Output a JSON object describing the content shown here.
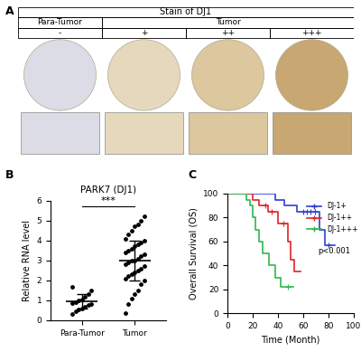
{
  "panel_a": {
    "label": "A",
    "header": "Stain of DJ1",
    "groups": [
      {
        "name": "Para-Tumor",
        "grades": [
          "-"
        ]
      },
      {
        "name": "Tumor",
        "grades": [
          "+",
          "++",
          "+++"
        ]
      }
    ]
  },
  "chart_data": [
    {
      "type": "scatter",
      "label": "B",
      "title": "PARK7 (DJ1)",
      "y_label": "Relative RNA level",
      "categories": [
        "Para-Tumor",
        "Tumor"
      ],
      "values": [
        [
          0.3,
          0.45,
          0.55,
          0.6,
          0.7,
          0.75,
          0.8,
          0.85,
          0.9,
          1.0,
          1.05,
          1.2,
          1.3,
          1.5,
          1.7
        ],
        [
          0.35,
          0.8,
          1.1,
          1.3,
          1.5,
          1.8,
          2.0,
          2.1,
          2.2,
          2.3,
          2.4,
          2.5,
          2.6,
          2.7,
          2.8,
          2.9,
          3.0,
          3.0,
          3.1,
          3.2,
          3.3,
          3.4,
          3.5,
          3.6,
          3.7,
          3.8,
          3.9,
          4.0,
          4.1,
          4.3,
          4.5,
          4.7,
          4.8,
          5.0,
          5.2
        ]
      ],
      "mean": [
        0.95,
        3.0
      ],
      "sd": [
        0.38,
        1.0
      ],
      "significance": "***",
      "color": "#000000",
      "ylim": [
        0,
        6
      ],
      "yticks": [
        0,
        1,
        2,
        3,
        4,
        5,
        6
      ]
    },
    {
      "type": "line",
      "label": "C",
      "x_label": "Time (Month)",
      "y_label": "Overall Survival (OS)",
      "xlim": [
        0,
        100
      ],
      "ylim": [
        0,
        100
      ],
      "xticks": [
        0,
        20,
        40,
        60,
        80,
        100
      ],
      "yticks": [
        0,
        20,
        40,
        60,
        80,
        100
      ],
      "line_style": "steps",
      "legend": "upper right",
      "annotations": [
        "p<0.001"
      ],
      "series": [
        {
          "name": "DJ-1+",
          "color": "#2f3fd6",
          "x": [
            0,
            38,
            45,
            55,
            73,
            77,
            85
          ],
          "values": [
            100,
            95,
            90,
            85,
            70,
            57,
            57
          ],
          "censored": [
            60,
            63,
            66,
            69,
            80
          ]
        },
        {
          "name": "DJ-1++",
          "color": "#e0222a",
          "x": [
            0,
            20,
            25,
            32,
            40,
            48,
            50,
            53,
            56,
            58
          ],
          "values": [
            100,
            95,
            90,
            85,
            75,
            60,
            45,
            35,
            35,
            35
          ],
          "censored": [
            30,
            35,
            44
          ]
        },
        {
          "name": "DJ-1+++",
          "color": "#2fb84a",
          "x": [
            0,
            15,
            18,
            20,
            22,
            25,
            28,
            33,
            38,
            42,
            45,
            52
          ],
          "values": [
            100,
            95,
            90,
            80,
            70,
            60,
            50,
            40,
            30,
            22,
            22,
            22
          ],
          "censored": [
            48
          ]
        }
      ]
    }
  ]
}
